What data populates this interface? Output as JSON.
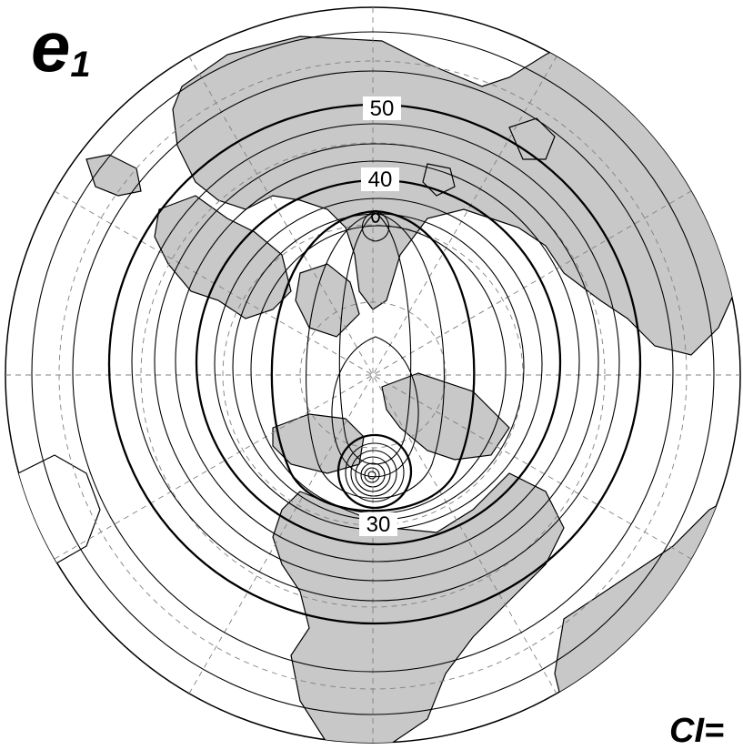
{
  "panel": {
    "label_main": "e",
    "label_sub": "1",
    "ci_text": "CI="
  },
  "contour_labels": [
    {
      "id": "c50",
      "text": "50"
    },
    {
      "id": "c40",
      "text": "40"
    },
    {
      "id": "c30",
      "text": "30"
    }
  ],
  "colors": {
    "land": "#c8c8c8",
    "ocean": "#ffffff",
    "contour": "#000000",
    "grid": "#808080"
  },
  "map": {
    "projection": "polar-stereographic",
    "center": "north-pole",
    "gridlines": "dashed"
  }
}
